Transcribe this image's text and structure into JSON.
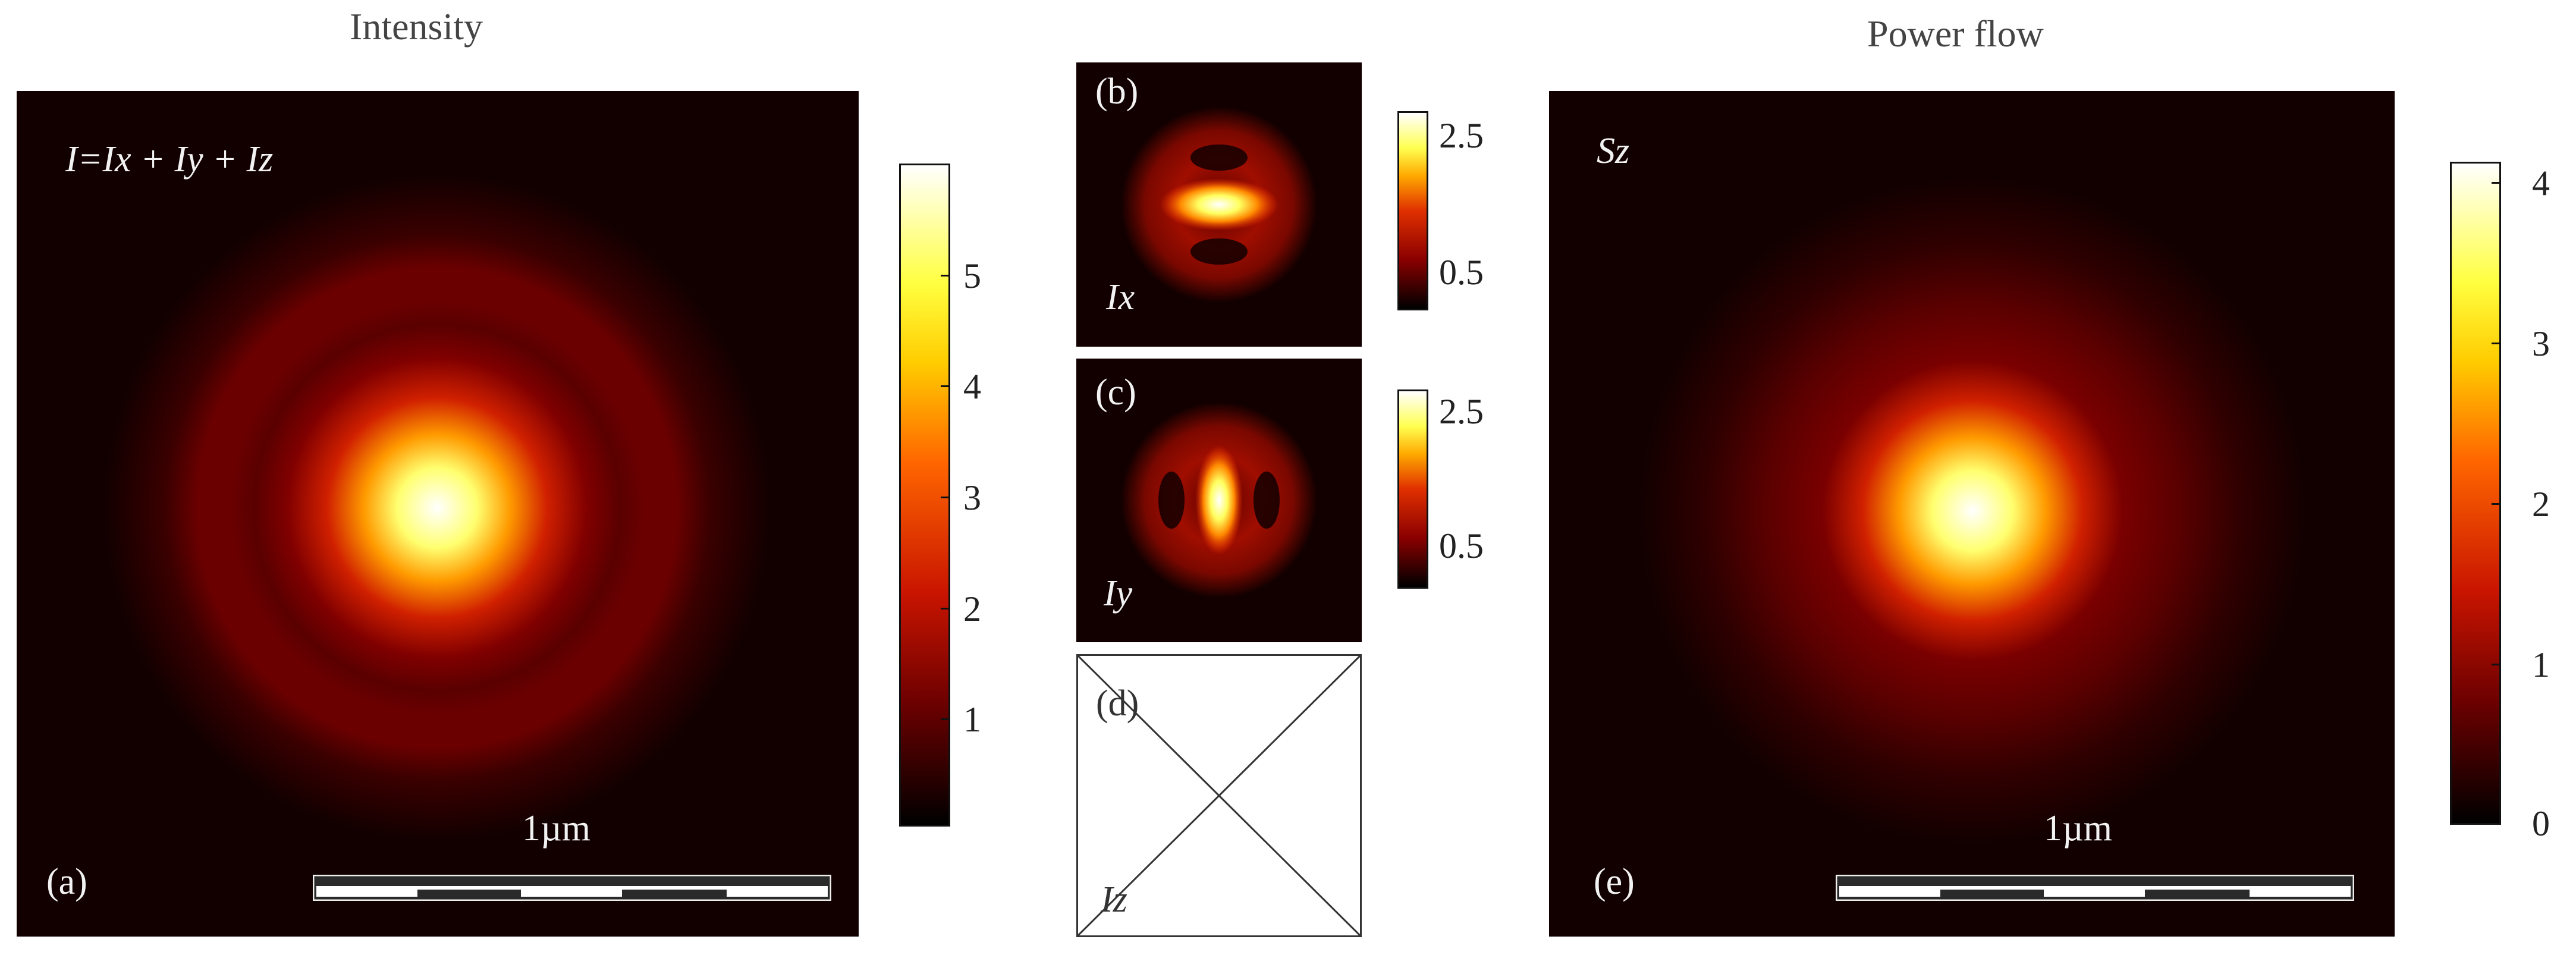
{
  "titles": {
    "intensity": "Intensity",
    "power_flow": "Power flow"
  },
  "panel_a": {
    "label": "(a)",
    "equation": "I=Ix + Iy + Iz",
    "scale_label": "1µm",
    "colorbar": {
      "max": 6,
      "ticks": [
        "1",
        "2",
        "3",
        "4",
        "5"
      ]
    }
  },
  "panel_b": {
    "label": "(b)",
    "component": "Ix",
    "colorbar": {
      "ticks": [
        "2.5",
        "0.5"
      ]
    }
  },
  "panel_c": {
    "label": "(c)",
    "component": "Iy",
    "colorbar": {
      "ticks": [
        "2.5",
        "0.5"
      ]
    }
  },
  "panel_d": {
    "label": "(d)",
    "component": "Iz"
  },
  "panel_e": {
    "label": "(e)",
    "component": "Sz",
    "scale_label": "1µm",
    "colorbar": {
      "ticks": [
        "0",
        "1",
        "2",
        "3",
        "4"
      ]
    }
  },
  "colors": {
    "map_low": "#120000",
    "map_mid": "#c81400",
    "map_high": "#ffff60",
    "map_top": "#ffffff"
  }
}
